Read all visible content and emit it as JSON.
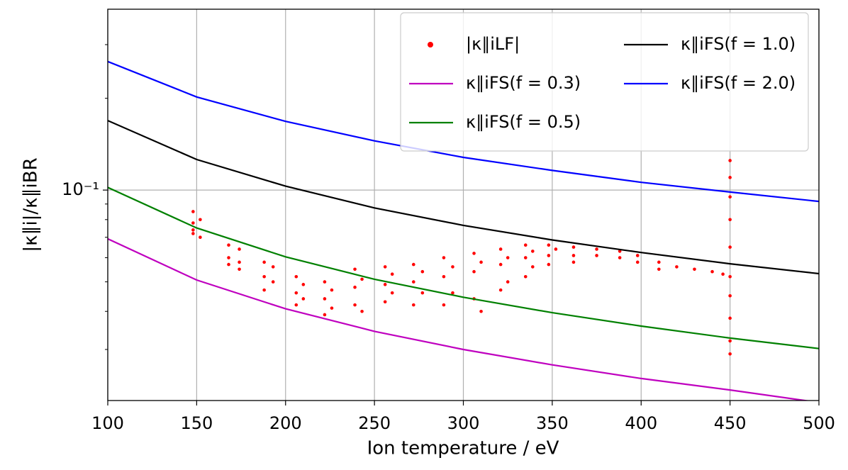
{
  "chart_data": {
    "type": "line",
    "xlabel": "Ion temperature / eV",
    "ylabel": "|κ∥i|/κ∥iBR",
    "xlim": [
      100,
      500
    ],
    "xticks": [
      100,
      150,
      200,
      250,
      300,
      350,
      400,
      450,
      500
    ],
    "ylim": [
      0.0204,
      0.392
    ],
    "yscale": "log",
    "yticks": [
      {
        "value": 0.1,
        "label": "10⁻¹"
      }
    ],
    "yminorticks": [
      0.03,
      0.04,
      0.05,
      0.06,
      0.07,
      0.08,
      0.09,
      0.2,
      0.3
    ],
    "grid": true,
    "legend": "upper right",
    "series": [
      {
        "name": "|κ∥iLF|",
        "color": "#ff0000",
        "kind": "scatter",
        "x": [
          148,
          148,
          148,
          148,
          152,
          152,
          168,
          168,
          168,
          174,
          174,
          174,
          188,
          188,
          188,
          193,
          193,
          206,
          206,
          206,
          210,
          210,
          222,
          222,
          222,
          226,
          226,
          239,
          239,
          239,
          243,
          243,
          256,
          256,
          256,
          260,
          260,
          272,
          272,
          272,
          277,
          277,
          289,
          289,
          289,
          294,
          294,
          306,
          306,
          306,
          310,
          310,
          321,
          321,
          321,
          325,
          325,
          335,
          335,
          335,
          339,
          339,
          348,
          348,
          348,
          352,
          362,
          362,
          362,
          375,
          375,
          388,
          388,
          398,
          398,
          410,
          410,
          420,
          430,
          440,
          446,
          450,
          450,
          450,
          450,
          450,
          450,
          450,
          450,
          450,
          450
        ],
        "values": [
          0.085,
          0.078,
          0.074,
          0.072,
          0.08,
          0.07,
          0.066,
          0.06,
          0.057,
          0.064,
          0.058,
          0.055,
          0.058,
          0.052,
          0.047,
          0.056,
          0.05,
          0.052,
          0.046,
          0.042,
          0.049,
          0.044,
          0.05,
          0.044,
          0.039,
          0.047,
          0.041,
          0.055,
          0.048,
          0.042,
          0.051,
          0.04,
          0.056,
          0.049,
          0.043,
          0.053,
          0.046,
          0.057,
          0.05,
          0.042,
          0.054,
          0.046,
          0.06,
          0.052,
          0.042,
          0.056,
          0.046,
          0.062,
          0.054,
          0.044,
          0.058,
          0.04,
          0.064,
          0.057,
          0.047,
          0.06,
          0.05,
          0.066,
          0.06,
          0.052,
          0.063,
          0.056,
          0.066,
          0.061,
          0.057,
          0.064,
          0.065,
          0.061,
          0.058,
          0.064,
          0.061,
          0.063,
          0.06,
          0.061,
          0.058,
          0.058,
          0.055,
          0.056,
          0.055,
          0.054,
          0.053,
          0.125,
          0.11,
          0.095,
          0.08,
          0.065,
          0.052,
          0.045,
          0.038,
          0.032,
          0.029
        ]
      },
      {
        "name": "κ∥iFS(f = 0.3)",
        "color": "#bf00bf",
        "kind": "line",
        "x": [
          100,
          150,
          200,
          250,
          300,
          350,
          400,
          450,
          500
        ],
        "values": [
          0.0692,
          0.0507,
          0.0408,
          0.0344,
          0.03,
          0.0267,
          0.0241,
          0.0221,
          0.0201
        ]
      },
      {
        "name": "κ∥iFS(f = 0.5)",
        "color": "#008000",
        "kind": "line",
        "x": [
          100,
          150,
          200,
          250,
          300,
          350,
          400,
          450,
          500
        ],
        "values": [
          0.102,
          0.0751,
          0.0604,
          0.051,
          0.0445,
          0.0396,
          0.0358,
          0.0327,
          0.0302
        ]
      },
      {
        "name": "κ∥iFS(f = 1.0)",
        "color": "#000000",
        "kind": "line",
        "x": [
          100,
          150,
          200,
          250,
          300,
          350,
          400,
          450,
          500
        ],
        "values": [
          0.169,
          0.126,
          0.103,
          0.0874,
          0.0766,
          0.0686,
          0.0624,
          0.0573,
          0.0532
        ]
      },
      {
        "name": "κ∥iFS(f = 2.0)",
        "color": "#0000ff",
        "kind": "line",
        "x": [
          100,
          150,
          200,
          250,
          300,
          350,
          400,
          450,
          500
        ],
        "values": [
          0.264,
          0.202,
          0.168,
          0.145,
          0.128,
          0.116,
          0.106,
          0.0985,
          0.0918
        ]
      }
    ]
  }
}
